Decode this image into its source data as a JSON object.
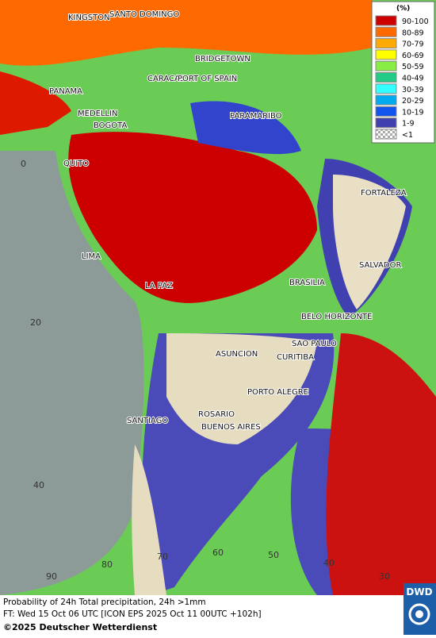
{
  "legend": {
    "title": "(%)",
    "items": [
      {
        "label": "90-100",
        "color": "#cc0000"
      },
      {
        "label": "80-89",
        "color": "#ff6a00"
      },
      {
        "label": "70-79",
        "color": "#ffaa00"
      },
      {
        "label": "60-69",
        "color": "#ffff00"
      },
      {
        "label": "50-59",
        "color": "#88ee44"
      },
      {
        "label": "40-49",
        "color": "#22cc88"
      },
      {
        "label": "30-39",
        "color": "#33ffff"
      },
      {
        "label": "20-29",
        "color": "#00aaee"
      },
      {
        "label": "10-19",
        "color": "#1155ee"
      },
      {
        "label": "1-9",
        "color": "#4040b0"
      },
      {
        "label": "<1",
        "color": "checker"
      }
    ]
  },
  "cities": [
    "KINGSTON",
    "SANTO DOMINGO",
    "BRIDGETOWN",
    "CARACAS",
    "PORT OF SPAIN",
    "PANAMA",
    "MEDELLIN",
    "BOGOTA",
    "PARAMARIBO",
    "QUITO",
    "FORTALEZA",
    "LIMA",
    "SALVADOR",
    "LA PAZ",
    "BRASILIA",
    "BELO HORIZONTE",
    "ASUNCION",
    "SAO PAULO",
    "CURITIBA",
    "PORTO ALEGRE",
    "SANTIAGO",
    "ROSARIO",
    "BUENOS AIRES"
  ],
  "grid_labels": [
    "0",
    "20",
    "40",
    "90",
    "80",
    "70",
    "60",
    "50",
    "40",
    "30"
  ],
  "footer": {
    "line1": "Probability of 24h Total precipitation, 24h >1mm",
    "line2": "FT: Wed 15 Oct 06 UTC [ICON EPS 2025 Oct 11 00UTC +102h]",
    "copyright": "©2025 Deutscher Wetterdienst",
    "logo": "DWD"
  }
}
